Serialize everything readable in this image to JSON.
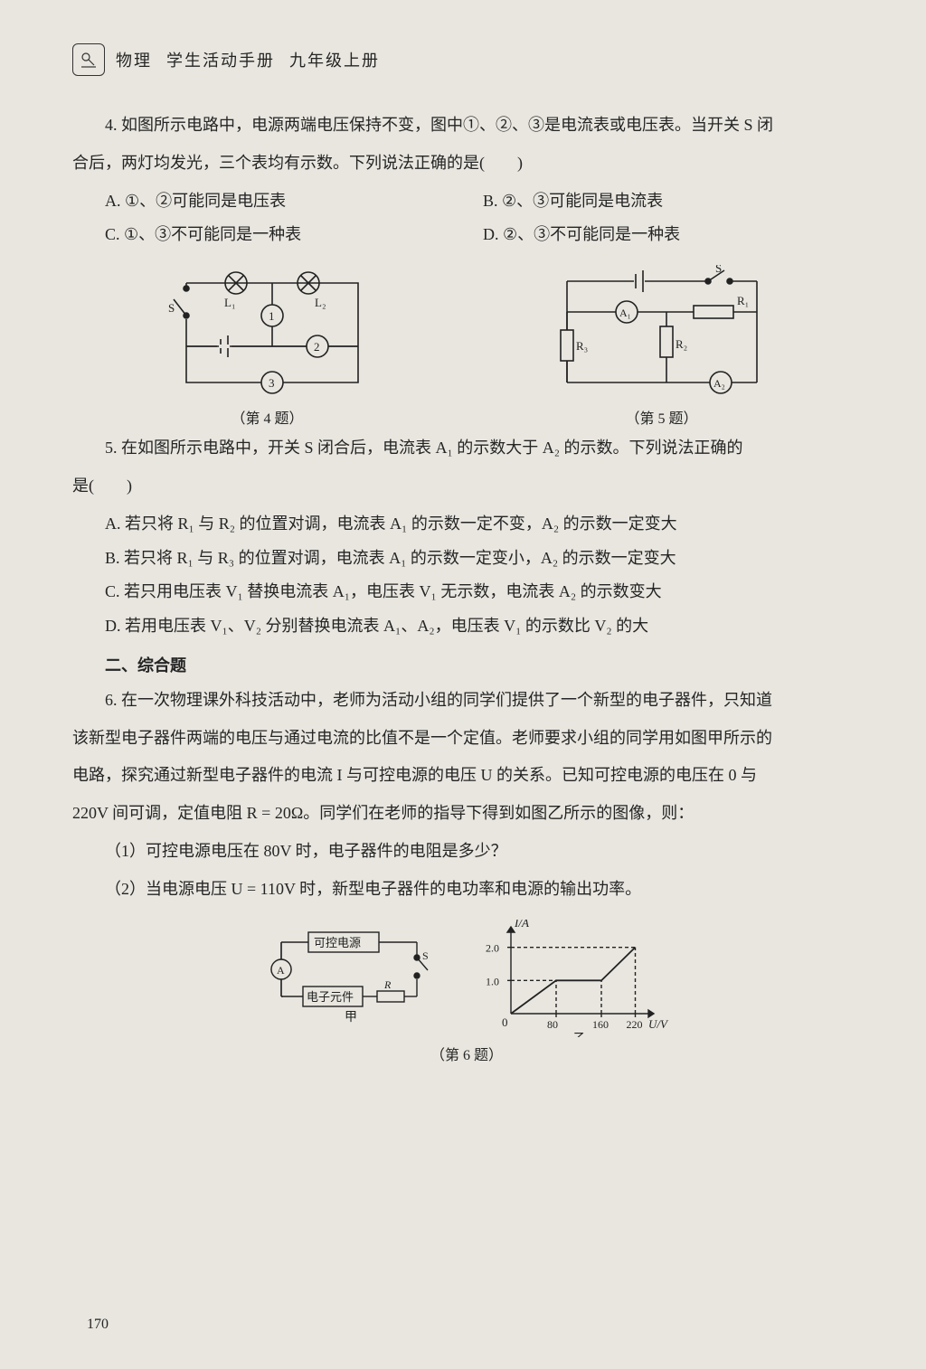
{
  "header": {
    "subject": "物理",
    "book": "学生活动手册",
    "volume": "九年级上册"
  },
  "q4": {
    "stem1": "4. 如图所示电路中，电源两端电压保持不变，图中①、②、③是电流表或电压表。当开关 S 闭",
    "stem2": "合后，两灯均发光，三个表均有示数。下列说法正确的是(　　)",
    "optA": "A. ①、②可能同是电压表",
    "optB": "B. ②、③可能同是电流表",
    "optC": "C. ①、③不可能同是一种表",
    "optD": "D. ②、③不可能同是一种表",
    "caption": "（第 4 题）",
    "circuit": {
      "labels": {
        "L1": "L₁",
        "L2": "L₂",
        "S": "S",
        "m1": "1",
        "m2": "2",
        "m3": "3"
      },
      "colors": {
        "stroke": "#222"
      }
    }
  },
  "q5": {
    "stem1": "5. 在如图所示电路中，开关 S 闭合后，电流表 A₁ 的示数大于 A₂ 的示数。下列说法正确的",
    "stem2": "是(　　)",
    "optA": "A. 若只将 R₁ 与 R₂ 的位置对调，电流表 A₁ 的示数一定不变，A₂ 的示数一定变大",
    "optB": "B. 若只将 R₁ 与 R₃ 的位置对调，电流表 A₁ 的示数一定变小，A₂ 的示数一定变大",
    "optC": "C. 若只用电压表 V₁ 替换电流表 A₁，电压表 V₁ 无示数，电流表 A₂ 的示数变大",
    "optD": "D. 若用电压表 V₁、V₂ 分别替换电流表 A₁、A₂，电压表 V₁ 的示数比 V₂ 的大",
    "caption": "（第 5 题）",
    "circuit": {
      "labels": {
        "S": "S",
        "R1": "R₁",
        "R2": "R₂",
        "R3": "R₃",
        "A1": "A₁",
        "A2": "A₂"
      },
      "colors": {
        "stroke": "#222"
      }
    }
  },
  "section2_heading": "二、综合题",
  "q6": {
    "stem1": "6. 在一次物理课外科技活动中，老师为活动小组的同学们提供了一个新型的电子器件，只知道",
    "stem2": "该新型电子器件两端的电压与通过电流的比值不是一个定值。老师要求小组的同学用如图甲所示的",
    "stem3": "电路，探究通过新型电子器件的电流 I 与可控电源的电压 U 的关系。已知可控电源的电压在 0 与",
    "stem4": "220V 间可调，定值电阻 R = 20Ω。同学们在老师的指导下得到如图乙所示的图像，则：",
    "sub1": "（1）可控电源电压在 80V 时，电子器件的电阻是多少？",
    "sub2": "（2）当电源电压 U = 110V 时，新型电子器件的电功率和电源的输出功率。",
    "caption": "（第 6 题）",
    "fig_left": {
      "labels": {
        "src": "可控电源",
        "dev": "电子元件",
        "A": "A",
        "S": "S",
        "R": "R",
        "cap": "甲"
      },
      "colors": {
        "stroke": "#222"
      }
    },
    "fig_right": {
      "cap": "乙",
      "y_label": "I/A",
      "x_label": "U/V",
      "y_ticks": [
        "1.0",
        "2.0"
      ],
      "x_ticks": [
        "80",
        "160",
        "220"
      ],
      "axis": {
        "xmin": 0,
        "xmax": 240,
        "ymin": 0,
        "ymax": 2.4
      },
      "line_points": [
        [
          0,
          0
        ],
        [
          80,
          1.0
        ],
        [
          160,
          1.0
        ],
        [
          220,
          2.0
        ]
      ],
      "dashed": [
        [
          [
            80,
            0
          ],
          [
            80,
            1.0
          ]
        ],
        [
          [
            0,
            1.0
          ],
          [
            160,
            1.0
          ]
        ],
        [
          [
            160,
            0
          ],
          [
            160,
            1.0
          ]
        ],
        [
          [
            0,
            2.0
          ],
          [
            220,
            2.0
          ]
        ],
        [
          [
            220,
            0
          ],
          [
            220,
            2.0
          ]
        ]
      ],
      "colors": {
        "stroke": "#222"
      }
    }
  },
  "page_number": "170"
}
